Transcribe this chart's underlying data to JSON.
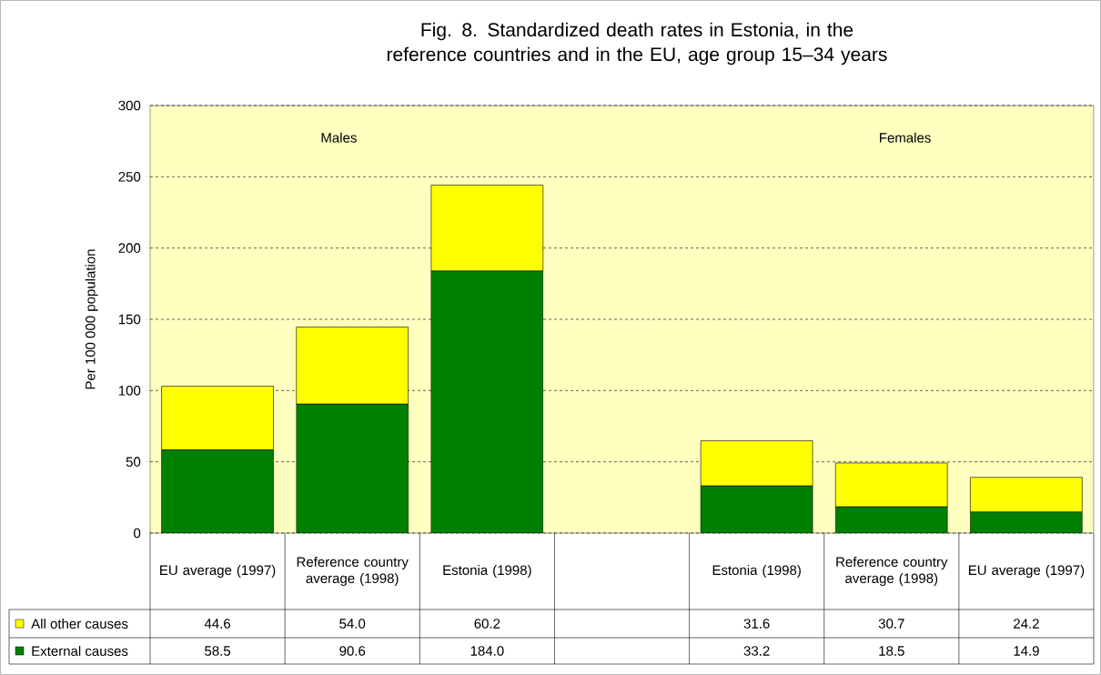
{
  "chart_data": {
    "type": "bar",
    "stacked": true,
    "title": "Fig. 8. Standardized death rates in Estonia, in the reference countries and in the EU,  age group 15–34 years",
    "ylabel": "Per 100 000 population",
    "categories": [
      "EU average (1997)",
      "Reference country average (1998)",
      "Estonia (1998)",
      null,
      "Estonia (1998)",
      "Reference country average (1998)",
      "EU average (1997)"
    ],
    "series": [
      {
        "name": "External causes",
        "color": "#008000",
        "values": [
          58.5,
          90.6,
          184.0,
          null,
          33.2,
          18.5,
          14.9
        ],
        "value_labels": [
          "58.5",
          "90.6",
          "184.0",
          null,
          "33.2",
          "18.5",
          "14.9"
        ]
      },
      {
        "name": "All other causes",
        "color": "#ffff00",
        "values": [
          44.6,
          54.0,
          60.2,
          null,
          31.6,
          30.7,
          24.2
        ],
        "value_labels": [
          "44.6",
          "54.0",
          "60.2",
          null,
          "31.6",
          "30.7",
          "24.2"
        ]
      }
    ],
    "annotations": [
      "Males",
      "Females"
    ],
    "ylim": [
      0,
      300
    ],
    "yticks": [
      0,
      50,
      100,
      150,
      200,
      250,
      300
    ],
    "grid": "y",
    "legend": "bottom left"
  }
}
